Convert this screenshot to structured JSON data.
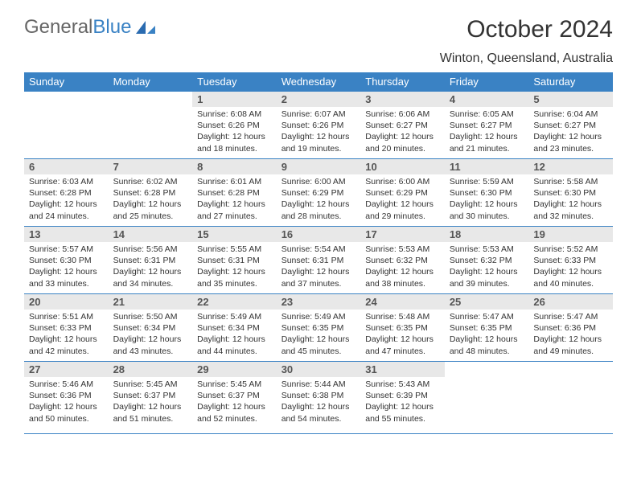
{
  "logo": {
    "text1": "General",
    "text2": "Blue"
  },
  "title": "October 2024",
  "location": "Winton, Queensland, Australia",
  "colors": {
    "header_bg": "#3a82c4",
    "header_text": "#ffffff",
    "daynum_bg": "#e8e8e8",
    "border": "#3a82c4",
    "body_text": "#333333"
  },
  "days_of_week": [
    "Sunday",
    "Monday",
    "Tuesday",
    "Wednesday",
    "Thursday",
    "Friday",
    "Saturday"
  ],
  "weeks": [
    [
      null,
      null,
      {
        "n": "1",
        "sunrise": "6:08 AM",
        "sunset": "6:26 PM",
        "daylight": "12 hours and 18 minutes."
      },
      {
        "n": "2",
        "sunrise": "6:07 AM",
        "sunset": "6:26 PM",
        "daylight": "12 hours and 19 minutes."
      },
      {
        "n": "3",
        "sunrise": "6:06 AM",
        "sunset": "6:27 PM",
        "daylight": "12 hours and 20 minutes."
      },
      {
        "n": "4",
        "sunrise": "6:05 AM",
        "sunset": "6:27 PM",
        "daylight": "12 hours and 21 minutes."
      },
      {
        "n": "5",
        "sunrise": "6:04 AM",
        "sunset": "6:27 PM",
        "daylight": "12 hours and 23 minutes."
      }
    ],
    [
      {
        "n": "6",
        "sunrise": "6:03 AM",
        "sunset": "6:28 PM",
        "daylight": "12 hours and 24 minutes."
      },
      {
        "n": "7",
        "sunrise": "6:02 AM",
        "sunset": "6:28 PM",
        "daylight": "12 hours and 25 minutes."
      },
      {
        "n": "8",
        "sunrise": "6:01 AM",
        "sunset": "6:28 PM",
        "daylight": "12 hours and 27 minutes."
      },
      {
        "n": "9",
        "sunrise": "6:00 AM",
        "sunset": "6:29 PM",
        "daylight": "12 hours and 28 minutes."
      },
      {
        "n": "10",
        "sunrise": "6:00 AM",
        "sunset": "6:29 PM",
        "daylight": "12 hours and 29 minutes."
      },
      {
        "n": "11",
        "sunrise": "5:59 AM",
        "sunset": "6:30 PM",
        "daylight": "12 hours and 30 minutes."
      },
      {
        "n": "12",
        "sunrise": "5:58 AM",
        "sunset": "6:30 PM",
        "daylight": "12 hours and 32 minutes."
      }
    ],
    [
      {
        "n": "13",
        "sunrise": "5:57 AM",
        "sunset": "6:30 PM",
        "daylight": "12 hours and 33 minutes."
      },
      {
        "n": "14",
        "sunrise": "5:56 AM",
        "sunset": "6:31 PM",
        "daylight": "12 hours and 34 minutes."
      },
      {
        "n": "15",
        "sunrise": "5:55 AM",
        "sunset": "6:31 PM",
        "daylight": "12 hours and 35 minutes."
      },
      {
        "n": "16",
        "sunrise": "5:54 AM",
        "sunset": "6:31 PM",
        "daylight": "12 hours and 37 minutes."
      },
      {
        "n": "17",
        "sunrise": "5:53 AM",
        "sunset": "6:32 PM",
        "daylight": "12 hours and 38 minutes."
      },
      {
        "n": "18",
        "sunrise": "5:53 AM",
        "sunset": "6:32 PM",
        "daylight": "12 hours and 39 minutes."
      },
      {
        "n": "19",
        "sunrise": "5:52 AM",
        "sunset": "6:33 PM",
        "daylight": "12 hours and 40 minutes."
      }
    ],
    [
      {
        "n": "20",
        "sunrise": "5:51 AM",
        "sunset": "6:33 PM",
        "daylight": "12 hours and 42 minutes."
      },
      {
        "n": "21",
        "sunrise": "5:50 AM",
        "sunset": "6:34 PM",
        "daylight": "12 hours and 43 minutes."
      },
      {
        "n": "22",
        "sunrise": "5:49 AM",
        "sunset": "6:34 PM",
        "daylight": "12 hours and 44 minutes."
      },
      {
        "n": "23",
        "sunrise": "5:49 AM",
        "sunset": "6:35 PM",
        "daylight": "12 hours and 45 minutes."
      },
      {
        "n": "24",
        "sunrise": "5:48 AM",
        "sunset": "6:35 PM",
        "daylight": "12 hours and 47 minutes."
      },
      {
        "n": "25",
        "sunrise": "5:47 AM",
        "sunset": "6:35 PM",
        "daylight": "12 hours and 48 minutes."
      },
      {
        "n": "26",
        "sunrise": "5:47 AM",
        "sunset": "6:36 PM",
        "daylight": "12 hours and 49 minutes."
      }
    ],
    [
      {
        "n": "27",
        "sunrise": "5:46 AM",
        "sunset": "6:36 PM",
        "daylight": "12 hours and 50 minutes."
      },
      {
        "n": "28",
        "sunrise": "5:45 AM",
        "sunset": "6:37 PM",
        "daylight": "12 hours and 51 minutes."
      },
      {
        "n": "29",
        "sunrise": "5:45 AM",
        "sunset": "6:37 PM",
        "daylight": "12 hours and 52 minutes."
      },
      {
        "n": "30",
        "sunrise": "5:44 AM",
        "sunset": "6:38 PM",
        "daylight": "12 hours and 54 minutes."
      },
      {
        "n": "31",
        "sunrise": "5:43 AM",
        "sunset": "6:39 PM",
        "daylight": "12 hours and 55 minutes."
      },
      null,
      null
    ]
  ]
}
